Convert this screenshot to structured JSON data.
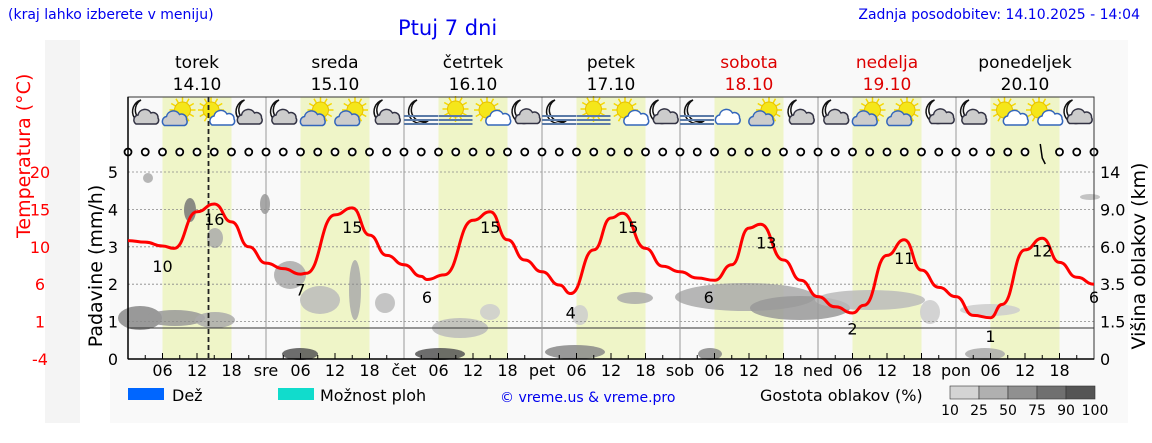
{
  "header": {
    "hint": "(kraj lahko izberete v meniju)",
    "title": "Ptuj 7 dni",
    "updated": "Zadnja posodobitev: 14.10.2025 - 14:04"
  },
  "days": [
    {
      "name": "torek",
      "date": "14.10",
      "short": "",
      "weekend": false
    },
    {
      "name": "sreda",
      "date": "15.10",
      "short": "sre",
      "weekend": false
    },
    {
      "name": "četrtek",
      "date": "16.10",
      "short": "čet",
      "weekend": false
    },
    {
      "name": "petek",
      "date": "17.10",
      "short": "pet",
      "weekend": false
    },
    {
      "name": "sobota",
      "date": "18.10",
      "short": "sob",
      "weekend": true
    },
    {
      "name": "nedelja",
      "date": "19.10",
      "short": "ned",
      "weekend": true
    },
    {
      "name": "ponedeljek",
      "date": "20.10",
      "short": "pon",
      "weekend": false
    }
  ],
  "hour_ticks": [
    "06",
    "12",
    "18"
  ],
  "weather_icons": [
    "moon-cloud",
    "sun-cloud",
    "sun-small-cloud",
    "moon-cloud",
    "moon-cloud",
    "sun-cloud",
    "sun-cloud",
    "moon-cloud",
    "moon-fog",
    "sun-fog",
    "sun-small-cloud",
    "moon-small-cloud",
    "moon-fog",
    "sun-fog",
    "sun-small-cloud",
    "moon-small-cloud",
    "moon-fog",
    "cloud",
    "sun-cloud",
    "moon-cloud",
    "moon-cloud",
    "sun-cloud",
    "sun-cloud",
    "moon-small-cloud",
    "moon-cloud",
    "sun-small-cloud",
    "sun-small-cloud",
    "moon-small-cloud"
  ],
  "colors": {
    "temperature": "#ff0000",
    "day_band": "#eff5c8",
    "rain": "#0066ff",
    "storm": "#11dccc",
    "weekend": "#dd0000"
  },
  "legend": {
    "rain": "Dež",
    "storm": "Možnost ploh",
    "credit": "© vreme.us & vreme.pro",
    "cloud_density": "Gostota oblakov (%)",
    "cloud_scale": [
      "10",
      "25",
      "50",
      "75",
      "90",
      "100"
    ]
  },
  "chart_data": {
    "type": "line",
    "title": "Ptuj 7 dni",
    "xlabel": "",
    "ylabel_left_temperature": "Temperatura (°C)",
    "ylabel_left_precip": "Padavine (mm/h)",
    "ylabel_right": "Višina oblakov (km)",
    "temp_ticks": [
      "20",
      "15",
      "10",
      "6",
      "1",
      "-4"
    ],
    "temp_range": [
      -4,
      20
    ],
    "precip_ticks": [
      "5",
      "4",
      "3",
      "2",
      "1",
      "0"
    ],
    "precip_range": [
      0,
      5
    ],
    "cloud_height_ticks": [
      "14",
      "9.0",
      "6.0",
      "3.5",
      "1.5",
      "0"
    ],
    "x_range_hours": [
      0,
      168
    ],
    "now_hour": 14,
    "series": [
      {
        "name": "Temperatura",
        "hours": [
          0,
          3,
          6,
          8,
          12,
          15,
          18,
          21,
          24,
          27,
          30,
          31,
          36,
          39,
          42,
          45,
          48,
          51,
          52,
          55,
          60,
          63,
          66,
          69,
          72,
          75,
          77,
          81,
          84,
          86,
          90,
          93,
          96,
          99,
          102,
          105,
          108,
          110,
          114,
          117,
          120,
          123,
          126,
          128,
          132,
          135,
          138,
          141,
          144,
          147,
          150,
          152,
          156,
          159,
          162,
          165,
          168
        ],
        "values": [
          11.2,
          11.0,
          10.5,
          10.2,
          14.9,
          15.9,
          13.6,
          10.4,
          8.3,
          7.6,
          6.9,
          7.0,
          14.5,
          15.4,
          11.9,
          9.3,
          8.1,
          6.6,
          6.2,
          6.8,
          13.8,
          14.9,
          11.3,
          8.7,
          7.2,
          5.5,
          4.4,
          10.0,
          14.1,
          14.7,
          10.2,
          7.9,
          7.2,
          6.4,
          6.1,
          8.1,
          12.8,
          13.3,
          8.7,
          6.1,
          4.0,
          2.7,
          1.9,
          2.9,
          9.3,
          11.3,
          7.4,
          5.2,
          4.0,
          1.6,
          1.3,
          3.0,
          10.0,
          11.5,
          8.4,
          6.5,
          5.6
        ]
      }
    ],
    "temp_labels": [
      {
        "hour": 6,
        "value": 10,
        "text": "10"
      },
      {
        "hour": 15,
        "value": 16,
        "text": "16"
      },
      {
        "hour": 30,
        "value": 7,
        "text": "7"
      },
      {
        "hour": 39,
        "value": 15,
        "text": "15"
      },
      {
        "hour": 52,
        "value": 6,
        "text": "6"
      },
      {
        "hour": 63,
        "value": 15,
        "text": "15"
      },
      {
        "hour": 77,
        "value": 4,
        "text": "4"
      },
      {
        "hour": 87,
        "value": 15,
        "text": "15"
      },
      {
        "hour": 101,
        "value": 6,
        "text": "6"
      },
      {
        "hour": 111,
        "value": 13,
        "text": "13"
      },
      {
        "hour": 126,
        "value": 2,
        "text": "2"
      },
      {
        "hour": 135,
        "value": 11,
        "text": "11"
      },
      {
        "hour": 150,
        "value": 1,
        "text": "1"
      },
      {
        "hour": 159,
        "value": 12,
        "text": "12"
      },
      {
        "hour": 168,
        "value": 6,
        "text": "6"
      }
    ],
    "grid": true
  }
}
